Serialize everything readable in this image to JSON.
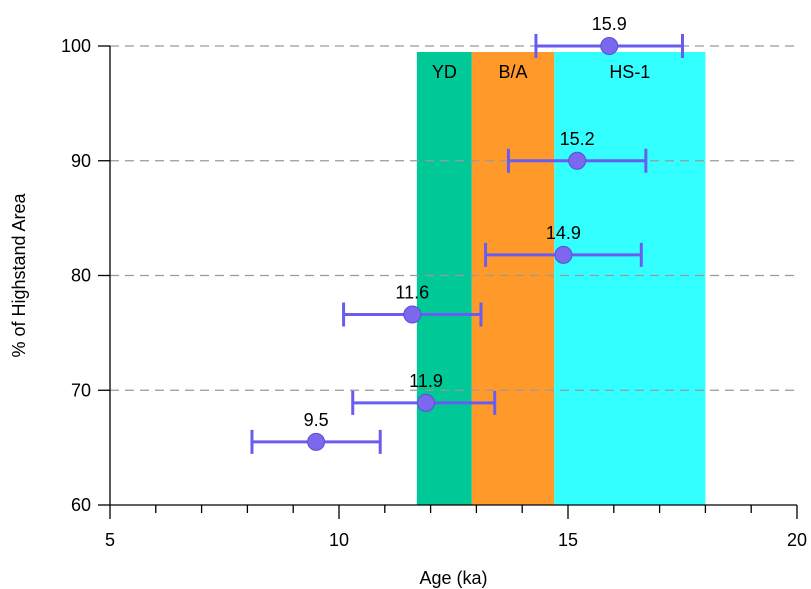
{
  "chart_data": {
    "type": "scatter",
    "xlabel": "Age (ka)",
    "ylabel": "% of Highstand Area",
    "xlim": [
      5,
      20
    ],
    "ylim": [
      60,
      100
    ],
    "xticks": [
      5,
      10,
      15,
      20
    ],
    "yticks": [
      60,
      70,
      80,
      90,
      100
    ],
    "x_minor_step": 1,
    "gridlines_y": [
      70,
      80,
      90,
      100
    ],
    "grid_style": "dashed horizontal",
    "marker_color": "#7b68ee",
    "errorbar_color": "#6a5cf0",
    "bands": [
      {
        "label": "YD",
        "x0": 11.7,
        "x1": 12.9,
        "color": "#00c896"
      },
      {
        "label": "B/A",
        "x0": 12.9,
        "x1": 14.7,
        "color": "#ff9a2a"
      },
      {
        "label": "HS-1",
        "x0": 14.7,
        "x1": 18.0,
        "color": "#33ffff"
      }
    ],
    "points": [
      {
        "label": "15.9",
        "x": 15.9,
        "y": 100,
        "xerr_low": 14.3,
        "xerr_high": 17.5
      },
      {
        "label": "15.2",
        "x": 15.2,
        "y": 90,
        "xerr_low": 13.7,
        "xerr_high": 16.7
      },
      {
        "label": "14.9",
        "x": 14.9,
        "y": 81.8,
        "xerr_low": 13.2,
        "xerr_high": 16.6
      },
      {
        "label": "11.6",
        "x": 11.6,
        "y": 76.6,
        "xerr_low": 10.1,
        "xerr_high": 13.1
      },
      {
        "label": "11.9",
        "x": 11.9,
        "y": 68.9,
        "xerr_low": 10.3,
        "xerr_high": 13.4
      },
      {
        "label": "9.5",
        "x": 9.5,
        "y": 65.5,
        "xerr_low": 8.1,
        "xerr_high": 10.9
      }
    ]
  }
}
